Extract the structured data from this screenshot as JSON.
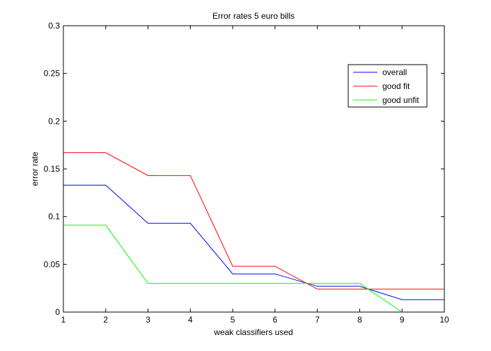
{
  "chart_data": {
    "type": "line",
    "title": "Error rates 5 euro bills",
    "xlabel": "weak classifiers used",
    "ylabel": "error rate",
    "xlim": [
      1,
      10
    ],
    "ylim": [
      0,
      0.3
    ],
    "x": [
      1,
      2,
      3,
      4,
      5,
      6,
      7,
      8,
      9,
      10
    ],
    "xticks": [
      "1",
      "2",
      "3",
      "4",
      "5",
      "6",
      "7",
      "8",
      "9",
      "10"
    ],
    "yticks": [
      "0",
      "0.05",
      "0.1",
      "0.15",
      "0.2",
      "0.25",
      "0.3"
    ],
    "grid": false,
    "legend_position": "top-right",
    "series": [
      {
        "name": "overall",
        "color": "#0000ff",
        "values": [
          0.133,
          0.133,
          0.093,
          0.093,
          0.04,
          0.04,
          0.027,
          0.027,
          0.013,
          0.013
        ]
      },
      {
        "name": "good fit",
        "color": "#ff0000",
        "values": [
          0.167,
          0.167,
          0.143,
          0.143,
          0.048,
          0.048,
          0.024,
          0.024,
          0.024,
          0.024
        ]
      },
      {
        "name": "good unfit",
        "color": "#00ff00",
        "values": [
          0.091,
          0.091,
          0.03,
          0.03,
          0.03,
          0.03,
          0.03,
          0.03,
          0.0,
          null
        ]
      }
    ]
  }
}
